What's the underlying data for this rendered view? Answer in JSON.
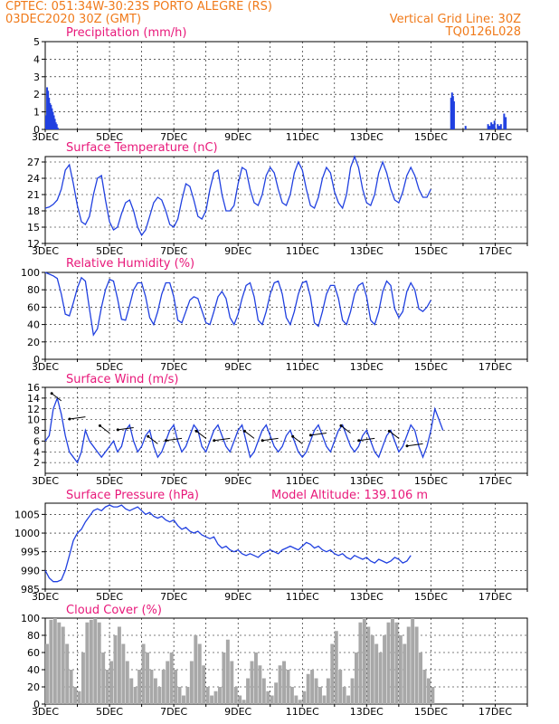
{
  "header": {
    "line1": "CPTEC:   051:34W-30:23S   PORTO ALEGRE (RS)",
    "line2": "03DEC2020 30Z (GMT)",
    "grid_note": "Vertical Grid Line: 30Z",
    "code": "TQ0126L028"
  },
  "colors": {
    "header": "#f07a1a",
    "title": "#e8187a",
    "line": "#2040e0",
    "cloud": "#a8a8a8"
  },
  "chart_data": [
    {
      "type": "bar",
      "title": "Precipitation (mm/h)",
      "ylim": [
        0,
        5
      ],
      "yticks": [
        0,
        1,
        2,
        3,
        4,
        5
      ],
      "xticks": [
        "3DEC",
        "5DEC",
        "7DEC",
        "9DEC",
        "11DEC",
        "13DEC",
        "15DEC",
        "17DEC"
      ],
      "x_range_days": [
        3,
        18
      ],
      "series": [
        {
          "x": [
            3.0,
            3.03,
            3.06,
            3.09,
            3.12,
            3.15,
            3.18,
            3.21,
            3.24,
            3.27,
            3.3,
            3.33,
            3.36,
            15.6,
            15.63,
            15.66,
            15.69,
            16.05,
            16.75,
            16.8,
            16.85,
            16.9,
            16.95,
            17.05,
            17.1,
            17.15,
            17.25,
            17.3
          ],
          "values": [
            0.8,
            2.4,
            2.2,
            1.8,
            1.5,
            1.4,
            1.2,
            1.0,
            0.8,
            0.6,
            0.4,
            0.3,
            0.1,
            1.8,
            2.1,
            1.9,
            1.6,
            0.2,
            0.3,
            0.2,
            0.4,
            0.3,
            0.5,
            0.3,
            0.2,
            0.3,
            0.9,
            0.7
          ]
        }
      ]
    },
    {
      "type": "line",
      "title": "Surface Temperature (nC)",
      "ylim": [
        12,
        28
      ],
      "yticks": [
        12,
        15,
        18,
        21,
        24,
        27
      ],
      "xticks": [
        "3DEC",
        "5DEC",
        "7DEC",
        "9DEC",
        "11DEC",
        "13DEC",
        "15DEC",
        "17DEC"
      ],
      "x_range_days": [
        3,
        18
      ],
      "series": [
        {
          "step_days": 0.125,
          "values": [
            18.5,
            18.7,
            19.2,
            20,
            22,
            25.5,
            26.5,
            23,
            19,
            16,
            15.5,
            17,
            21,
            24,
            24.5,
            20,
            16,
            14.5,
            15,
            17.5,
            19.5,
            20,
            18,
            15,
            13.5,
            14.5,
            17,
            19.5,
            20.5,
            20,
            18,
            15.5,
            15,
            16.5,
            20,
            23,
            22.5,
            20,
            17,
            16.5,
            18,
            22,
            25,
            25.5,
            21,
            18,
            18,
            19,
            23,
            26,
            25.5,
            22,
            19.5,
            19,
            21,
            24.5,
            26,
            25,
            22,
            19.5,
            19,
            21,
            25,
            27,
            25.5,
            22,
            19,
            18.5,
            20.5,
            24,
            26,
            25,
            21.5,
            19.5,
            18.5,
            21,
            26,
            28,
            26,
            22,
            19.5,
            19,
            21,
            25,
            27,
            25,
            22,
            20,
            19.5,
            21.5,
            24.5,
            26,
            24.5,
            22,
            20.5,
            20.5,
            22
          ]
        }
      ]
    },
    {
      "type": "line",
      "title": "Relative Humidity (%)",
      "ylim": [
        0,
        100
      ],
      "yticks": [
        0,
        20,
        40,
        60,
        80,
        100
      ],
      "xticks": [
        "3DEC",
        "5DEC",
        "7DEC",
        "9DEC",
        "11DEC",
        "13DEC",
        "15DEC",
        "17DEC"
      ],
      "x_range_days": [
        3,
        18
      ],
      "series": [
        {
          "step_days": 0.125,
          "values": [
            100,
            98,
            96,
            93,
            75,
            52,
            50,
            65,
            82,
            94,
            90,
            58,
            28,
            35,
            60,
            80,
            92,
            90,
            70,
            46,
            45,
            62,
            80,
            88,
            88,
            72,
            48,
            40,
            55,
            75,
            88,
            88,
            72,
            45,
            42,
            55,
            68,
            72,
            70,
            56,
            42,
            40,
            55,
            72,
            78,
            70,
            48,
            40,
            52,
            70,
            85,
            88,
            72,
            45,
            40,
            55,
            75,
            88,
            90,
            75,
            48,
            40,
            55,
            75,
            88,
            90,
            72,
            42,
            38,
            55,
            75,
            85,
            85,
            70,
            45,
            40,
            55,
            75,
            85,
            88,
            72,
            45,
            40,
            55,
            78,
            90,
            85,
            58,
            48,
            55,
            78,
            88,
            80,
            58,
            55,
            60,
            68
          ]
        }
      ]
    },
    {
      "type": "line",
      "title": "Surface Wind (m/s)",
      "ylim": [
        0,
        16
      ],
      "yticks": [
        2,
        4,
        6,
        8,
        10,
        12,
        14,
        16
      ],
      "xticks": [
        "3DEC",
        "5DEC",
        "7DEC",
        "9DEC",
        "11DEC",
        "13DEC",
        "15DEC",
        "17DEC"
      ],
      "x_range_days": [
        3,
        18
      ],
      "series": [
        {
          "step_days": 0.125,
          "values": [
            6,
            7,
            12,
            14,
            11,
            7,
            4,
            3,
            2,
            4,
            8,
            6,
            5,
            4,
            3,
            4,
            5,
            6,
            4,
            5,
            8,
            9,
            6,
            4,
            5,
            7,
            8,
            5,
            3,
            4,
            6,
            8,
            9,
            6,
            4,
            5,
            7,
            9,
            8,
            5,
            4,
            6,
            8,
            9,
            7,
            5,
            4,
            6,
            8,
            9,
            6,
            3,
            4,
            6,
            8,
            9,
            7,
            5,
            4,
            5,
            7,
            8,
            6,
            4,
            3,
            4,
            6,
            8,
            9,
            7,
            5,
            4,
            6,
            8,
            9,
            7,
            5,
            4,
            5,
            7,
            8,
            6,
            4,
            3,
            5,
            7,
            8,
            6,
            4,
            5,
            7,
            9,
            8,
            5,
            3,
            5,
            8,
            12,
            10,
            8
          ]
        }
      ]
    },
    {
      "type": "line",
      "title": "Surface Pressure (hPa)",
      "annotation": "Model Altitude: 139.106 m",
      "ylim": [
        985,
        1008
      ],
      "yticks": [
        985,
        990,
        995,
        1000,
        1005
      ],
      "xticks": [
        "3DEC",
        "5DEC",
        "7DEC",
        "9DEC",
        "11DEC",
        "13DEC",
        "15DEC",
        "17DEC"
      ],
      "x_range_days": [
        3,
        18
      ],
      "series": [
        {
          "step_days": 0.125,
          "values": [
            990,
            988,
            987,
            987,
            987.5,
            990,
            994,
            998,
            1000,
            1001,
            1003,
            1004.5,
            1006,
            1006.5,
            1006,
            1007,
            1007.5,
            1007,
            1007,
            1007.5,
            1006.5,
            1006,
            1006.5,
            1007,
            1006,
            1005,
            1005.5,
            1004.5,
            1004,
            1004.5,
            1003.5,
            1003,
            1003.5,
            1002,
            1001,
            1001.5,
            1000.5,
            1000,
            1000.5,
            999.5,
            999,
            998.5,
            999,
            997,
            996,
            996.5,
            995.5,
            995,
            995.5,
            994.5,
            994,
            994.5,
            994,
            993.5,
            994.5,
            995,
            995.5,
            995,
            994.5,
            995.5,
            996,
            996.5,
            996,
            995.5,
            996.5,
            997.5,
            997,
            996,
            996.5,
            995.5,
            995,
            995.5,
            994.5,
            994,
            994.5,
            993.5,
            993,
            994,
            993.5,
            993,
            993.5,
            992.5,
            992,
            993,
            992.5,
            992,
            992.5,
            993.5,
            993,
            992,
            992.5,
            994
          ]
        }
      ]
    },
    {
      "type": "area",
      "title": "Cloud Cover (%)",
      "ylim": [
        0,
        100
      ],
      "yticks": [
        0,
        20,
        40,
        60,
        80,
        100
      ],
      "xticks": [
        "3DEC",
        "5DEC",
        "7DEC",
        "9DEC",
        "11DEC",
        "13DEC",
        "15DEC",
        "17DEC"
      ],
      "x_range_days": [
        3,
        18
      ],
      "series": [
        {
          "step_days": 0.125,
          "values": [
            70,
            98,
            100,
            95,
            90,
            70,
            40,
            20,
            15,
            60,
            95,
            98,
            100,
            95,
            60,
            40,
            50,
            80,
            90,
            70,
            50,
            30,
            20,
            40,
            70,
            60,
            40,
            30,
            20,
            40,
            50,
            60,
            40,
            20,
            10,
            20,
            50,
            80,
            70,
            45,
            20,
            10,
            15,
            20,
            60,
            75,
            50,
            20,
            10,
            5,
            30,
            50,
            60,
            45,
            30,
            15,
            10,
            25,
            45,
            50,
            40,
            20,
            10,
            5,
            15,
            35,
            40,
            30,
            20,
            10,
            30,
            70,
            85,
            40,
            20,
            10,
            30,
            60,
            95,
            100,
            90,
            80,
            70,
            60,
            80,
            95,
            100,
            95,
            80,
            70,
            90,
            100,
            90,
            60,
            40,
            30,
            20
          ]
        }
      ]
    }
  ]
}
